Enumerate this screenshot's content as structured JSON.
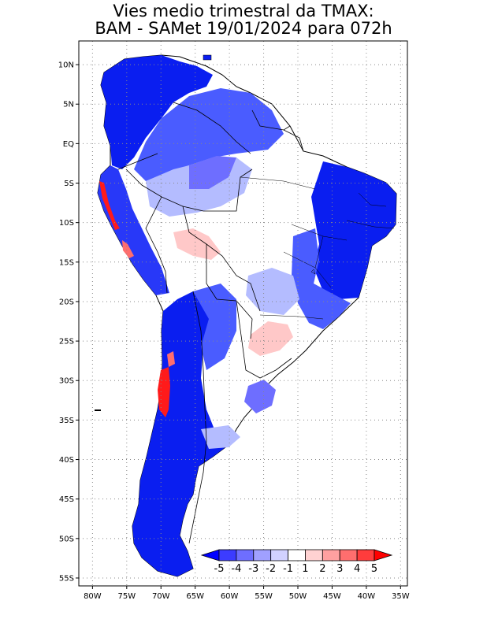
{
  "title_line1": "Vies medio trimestral da TMAX:",
  "title_line2": "BAM - SAMet 19/01/2024  para 072h",
  "map": {
    "lon_ticks": [
      "80W",
      "75W",
      "70W",
      "65W",
      "60W",
      "55W",
      "50W",
      "45W",
      "40W",
      "35W"
    ],
    "lat_ticks": [
      "10N",
      "5N",
      "EQ",
      "5S",
      "10S",
      "15S",
      "20S",
      "25S",
      "30S",
      "35S",
      "40S",
      "45S",
      "50S",
      "55S"
    ],
    "lon_range": [
      -82,
      -34
    ],
    "lat_range": [
      -56,
      13
    ],
    "grid": "dotted"
  },
  "colorbar": {
    "labels": [
      "-5",
      "-4",
      "-3",
      "-2",
      "-1",
      "1",
      "2",
      "3",
      "4",
      "5"
    ],
    "colors": [
      "#0000ff",
      "#3c3cff",
      "#6e6eff",
      "#a0a0ff",
      "#d2d2ff",
      "#ffffff",
      "#ffd2d2",
      "#ffa0a0",
      "#ff6e6e",
      "#ff3c3c",
      "#ff0000"
    ]
  },
  "legend_colors": {
    "land_white": "#ffffff",
    "strong_blue": "#0a1ef0",
    "mid_blue": "#4a5cff",
    "light_blue": "#b4bcff",
    "light_red": "#ffc8c8",
    "strong_red": "#ff1a1a"
  }
}
